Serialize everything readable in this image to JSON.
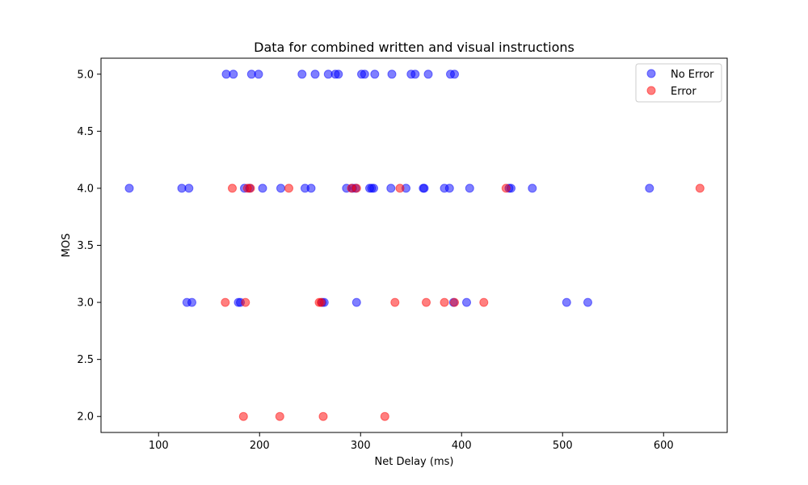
{
  "chart_data": {
    "type": "scatter",
    "title": "Data for combined written and visual instructions",
    "xlabel": "Net Delay (ms)",
    "ylabel": "MOS",
    "xlim": [
      43,
      663
    ],
    "ylim": [
      1.86,
      5.14
    ],
    "xticks": [
      100,
      200,
      300,
      400,
      500,
      600
    ],
    "yticks": [
      2.0,
      2.5,
      3.0,
      3.5,
      4.0,
      4.5,
      5.0
    ],
    "grid": false,
    "legend_position": "top-right",
    "series": [
      {
        "name": "No Error",
        "color": "#0000ff",
        "points": [
          [
            167,
            5.0
          ],
          [
            174,
            5.0
          ],
          [
            192,
            5.0
          ],
          [
            199,
            5.0
          ],
          [
            242,
            5.0
          ],
          [
            255,
            5.0
          ],
          [
            268,
            5.0
          ],
          [
            275,
            5.0
          ],
          [
            278,
            5.0
          ],
          [
            301,
            5.0
          ],
          [
            304,
            5.0
          ],
          [
            314,
            5.0
          ],
          [
            331,
            5.0
          ],
          [
            350,
            5.0
          ],
          [
            354,
            5.0
          ],
          [
            367,
            5.0
          ],
          [
            389,
            5.0
          ],
          [
            393,
            5.0
          ],
          [
            71,
            4.0
          ],
          [
            123,
            4.0
          ],
          [
            130,
            4.0
          ],
          [
            185,
            4.0
          ],
          [
            190,
            4.0
          ],
          [
            203,
            4.0
          ],
          [
            221,
            4.0
          ],
          [
            245,
            4.0
          ],
          [
            251,
            4.0
          ],
          [
            286,
            4.0
          ],
          [
            292,
            4.0
          ],
          [
            295,
            4.0
          ],
          [
            309,
            4.0
          ],
          [
            311,
            4.0
          ],
          [
            313,
            4.0
          ],
          [
            330,
            4.0
          ],
          [
            345,
            4.0
          ],
          [
            362,
            4.0
          ],
          [
            363,
            4.0
          ],
          [
            383,
            4.0
          ],
          [
            388,
            4.0
          ],
          [
            408,
            4.0
          ],
          [
            447,
            4.0
          ],
          [
            449,
            4.0
          ],
          [
            470,
            4.0
          ],
          [
            586,
            4.0
          ],
          [
            128,
            3.0
          ],
          [
            133,
            3.0
          ],
          [
            179,
            3.0
          ],
          [
            181,
            3.0
          ],
          [
            262,
            3.0
          ],
          [
            264,
            3.0
          ],
          [
            296,
            3.0
          ],
          [
            392,
            3.0
          ],
          [
            405,
            3.0
          ],
          [
            504,
            3.0
          ],
          [
            525,
            3.0
          ]
        ]
      },
      {
        "name": "Error",
        "color": "#ff0000",
        "points": [
          [
            173,
            4.0
          ],
          [
            188,
            4.0
          ],
          [
            191,
            4.0
          ],
          [
            229,
            4.0
          ],
          [
            291,
            4.0
          ],
          [
            296,
            4.0
          ],
          [
            339,
            4.0
          ],
          [
            444,
            4.0
          ],
          [
            636,
            4.0
          ],
          [
            166,
            3.0
          ],
          [
            186,
            3.0
          ],
          [
            259,
            3.0
          ],
          [
            261,
            3.0
          ],
          [
            334,
            3.0
          ],
          [
            365,
            3.0
          ],
          [
            383,
            3.0
          ],
          [
            393,
            3.0
          ],
          [
            422,
            3.0
          ],
          [
            184,
            2.0
          ],
          [
            220,
            2.0
          ],
          [
            263,
            2.0
          ],
          [
            324,
            2.0
          ]
        ]
      }
    ]
  }
}
